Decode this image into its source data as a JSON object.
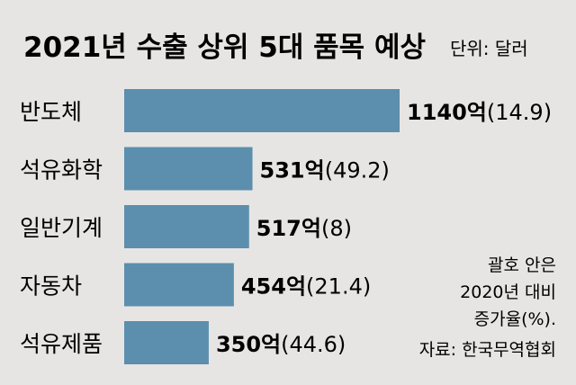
{
  "chart_data": {
    "type": "bar",
    "orientation": "horizontal",
    "title": "2021년 수출 상위 5대 품목 예상",
    "unit_label": "단위: 달러",
    "categories": [
      "반도체",
      "석유화학",
      "일반기계",
      "자동차",
      "석유제품"
    ],
    "values": [
      1140,
      531,
      517,
      454,
      350
    ],
    "value_suffix": "억",
    "growth": [
      "(14.9)",
      "(49.2)",
      "(8)",
      "(21.4)",
      "(44.6)"
    ],
    "xlim": [
      0,
      1140
    ],
    "grid": false,
    "legend": "none",
    "bar_color": "#5b8fad",
    "background": "#e7e5e3",
    "notes": [
      "괄호 안은",
      "2020년 대비",
      "증가율(%)."
    ],
    "source": "자료: 한국무역협회"
  }
}
